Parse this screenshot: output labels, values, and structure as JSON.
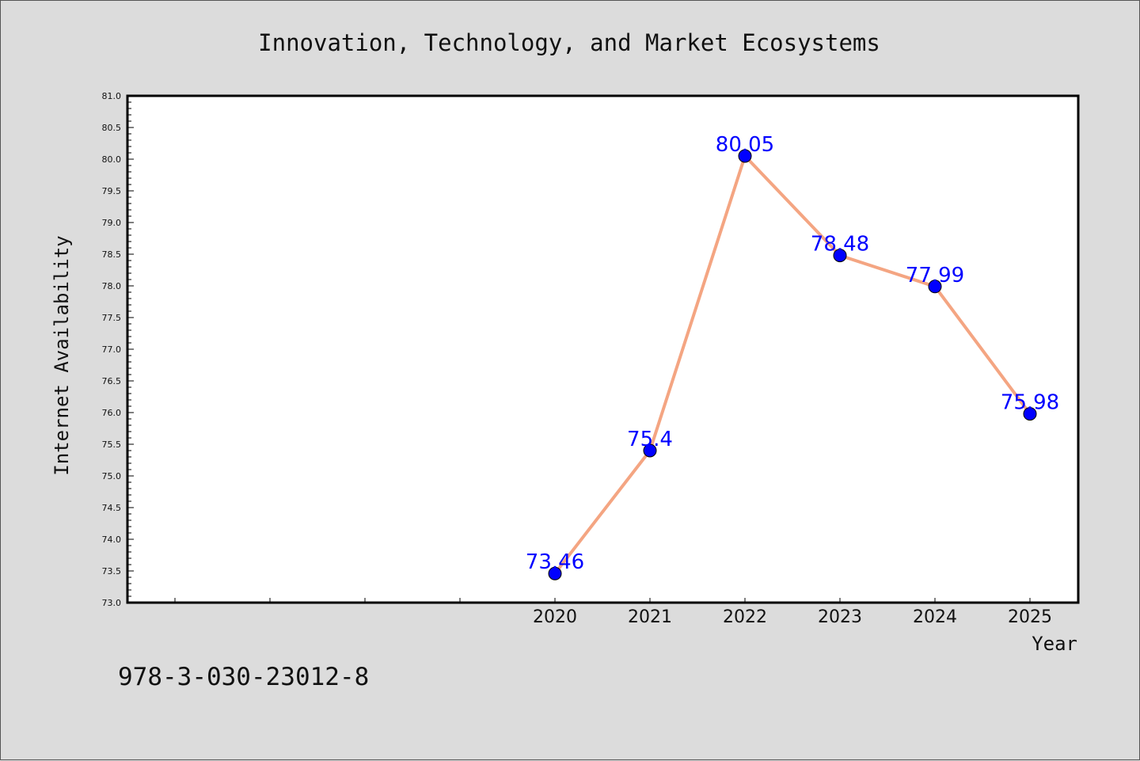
{
  "figure": {
    "background": "#dcdcdc",
    "footer_text": "978-3-030-23012-8"
  },
  "chart_data": {
    "type": "line",
    "title": "Innovation, Technology, and Market Ecosystems",
    "xlabel": "Year",
    "ylabel": "Internet Availability",
    "x": [
      "2020",
      "2021",
      "2022",
      "2023",
      "2024",
      "2025"
    ],
    "series": [
      {
        "values": [
          73.46,
          75.4,
          80.05,
          78.48,
          77.99,
          75.98
        ],
        "labels": [
          "73.46",
          "75.4",
          "80.05",
          "78.48",
          "77.99",
          "75.98"
        ],
        "line_color": "#f4a582",
        "marker_color": "#0000ff",
        "label_color": "#0000ff"
      }
    ],
    "ylim": [
      73.0,
      81.0
    ],
    "yticks": [
      "73.0",
      "73.5",
      "74.0",
      "74.5",
      "75.0",
      "75.5",
      "76.0",
      "76.5",
      "77.0",
      "77.5",
      "78.0",
      "78.5",
      "79.0",
      "79.5",
      "80.0",
      "80.5",
      "81.0"
    ],
    "grid": false,
    "legend": "none"
  }
}
